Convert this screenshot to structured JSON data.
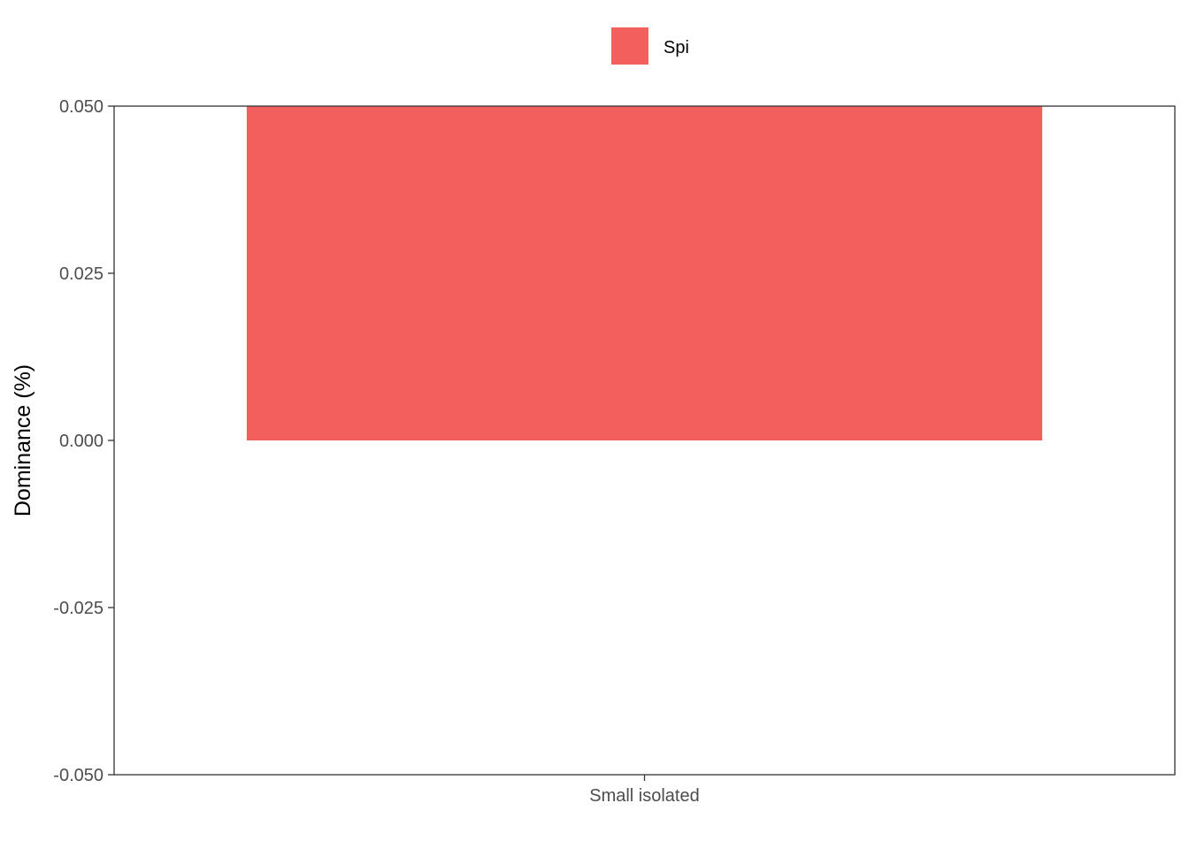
{
  "chart_data": {
    "type": "bar",
    "categories": [
      "Small isolated"
    ],
    "series": [
      {
        "name": "Spi",
        "values": [
          0.05
        ],
        "color": "#F35F5C"
      }
    ],
    "ylabel": "Dominance (%)",
    "xlabel": "",
    "ylim": [
      -0.05,
      0.05
    ],
    "yticks": [
      0.05,
      0.025,
      0.0,
      -0.025,
      -0.05
    ],
    "ytick_labels": [
      "0.050",
      "0.025",
      "0.000",
      "-0.025",
      "-0.050"
    ],
    "grid": false,
    "legend_position": "top"
  }
}
